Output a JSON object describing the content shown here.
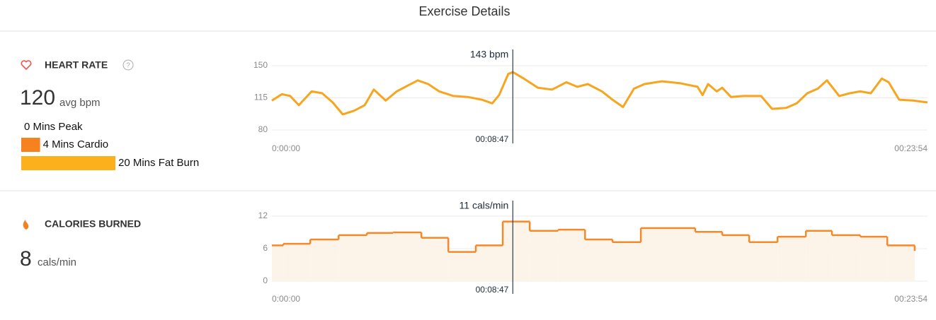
{
  "title": "Exercise Details",
  "heart_rate": {
    "label": "HEART RATE",
    "avg": 120,
    "avg_unit": "avg bpm",
    "zones": [
      {
        "label": "0 Mins Peak",
        "minutes": 0,
        "color": "#f5821f"
      },
      {
        "label": "4 Mins Cardio",
        "minutes": 4,
        "color": "#f5821f"
      },
      {
        "label": "20 Mins Fat Burn",
        "minutes": 20,
        "color": "#fcb11c"
      }
    ]
  },
  "calories": {
    "label": "CALORIES BURNED",
    "avg": 8,
    "avg_unit": "cals/min"
  },
  "chart_data": [
    {
      "type": "line",
      "x": [
        0,
        22,
        40,
        59,
        87,
        110,
        133,
        155,
        180,
        203,
        223,
        249,
        273,
        296,
        319,
        342,
        366,
        397,
        428,
        459,
        482,
        497,
        517,
        527,
        551,
        582,
        613,
        644,
        668,
        691,
        722,
        745,
        768,
        792,
        815,
        853,
        892,
        931,
        942,
        954,
        973,
        985,
        1004,
        1032,
        1070,
        1094,
        1125,
        1148,
        1171,
        1194,
        1214,
        1241,
        1264,
        1287,
        1310,
        1334,
        1349,
        1372,
        1403,
        1434
      ],
      "series": [
        {
          "color": "#f7a51e",
          "values": [
            112,
            119,
            117,
            107,
            122,
            120,
            110,
            97,
            101,
            107,
            124,
            112,
            122,
            128,
            134,
            130,
            122,
            117,
            116,
            113,
            109,
            118,
            141,
            143,
            136,
            126,
            124,
            132,
            127,
            130,
            122,
            113,
            105,
            125,
            130,
            133,
            131,
            127,
            118,
            130,
            122,
            126,
            116,
            117,
            117,
            103,
            104,
            109,
            120,
            125,
            134,
            117,
            120,
            122,
            120,
            136,
            132,
            113,
            112,
            110
          ]
        }
      ],
      "xlim": [
        0,
        1434
      ],
      "xticks": [
        {
          "value": 0,
          "label": "0:00:00"
        },
        {
          "value": 1434,
          "label": "00:23:54"
        }
      ],
      "ylim": [
        80,
        150
      ],
      "yticks": [
        80,
        115,
        150
      ],
      "grid": true,
      "cursor": {
        "x": {
          "value": 527,
          "label": "00:08:47"
        },
        "annotation": {
          "value": 143,
          "label": "143 bpm"
        }
      }
    },
    {
      "type": "step",
      "x": [
        0,
        25,
        84,
        146,
        208,
        265,
        327,
        386,
        446,
        505,
        564,
        626,
        685,
        745,
        807,
        926,
        985,
        1044,
        1106,
        1168,
        1225,
        1287,
        1346,
        1406
      ],
      "series": [
        {
          "color": "#f5892a",
          "fill": "#fdf4e9",
          "values": [
            6.6,
            6.9,
            7.7,
            8.5,
            8.9,
            9.0,
            8.0,
            5.4,
            6.6,
            11,
            9.3,
            9.5,
            7.7,
            7.2,
            9.8,
            9.1,
            8.5,
            7.2,
            8.2,
            9.3,
            8.5,
            8.2,
            6.6,
            5.6
          ]
        }
      ],
      "xlim": [
        0,
        1434
      ],
      "xticks": [
        {
          "value": 0,
          "label": "0:00:00"
        },
        {
          "value": 1434,
          "label": "00:23:54"
        }
      ],
      "ylim": [
        0,
        12
      ],
      "yticks": [
        0,
        6,
        12
      ],
      "grid": true,
      "cursor": {
        "x": {
          "value": 527,
          "label": "00:08:47"
        },
        "annotation": {
          "value": 11,
          "label": "11 cals/min"
        }
      }
    }
  ]
}
